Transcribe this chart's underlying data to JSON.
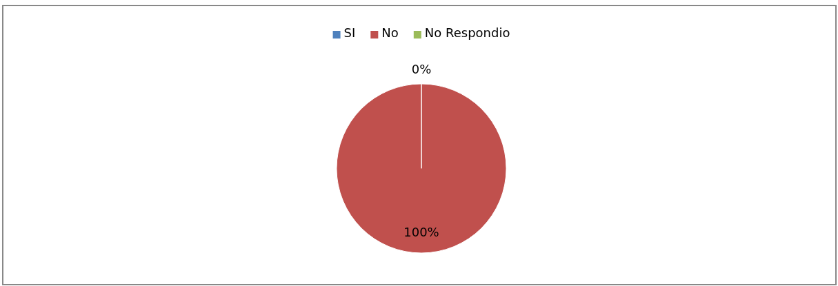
{
  "chart_data": {
    "type": "pie",
    "categories": [
      "SI",
      "No",
      "No Respondio"
    ],
    "values": [
      0,
      100,
      0
    ],
    "colors": [
      "#4f81bd",
      "#c0504d",
      "#9bbb59"
    ],
    "value_labels": [
      "0%",
      "100%",
      null
    ],
    "legend": "top"
  }
}
